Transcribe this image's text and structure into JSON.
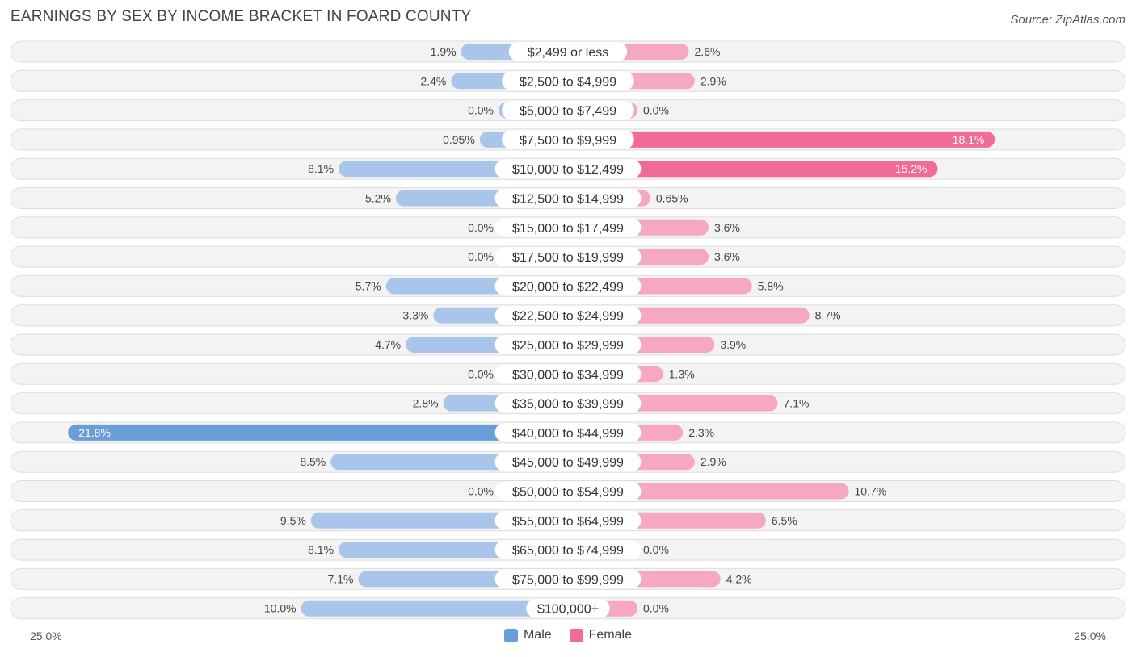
{
  "header": {
    "title": "EARNINGS BY SEX BY INCOME BRACKET IN FOARD COUNTY",
    "source": "Source: ZipAtlas.com"
  },
  "colors": {
    "male_light": "#a9c6ea",
    "male_strong": "#6a9ed9",
    "female_light": "#f6a7c2",
    "female_strong": "#f06b96"
  },
  "axis": {
    "left_label": "25.0%",
    "right_label": "25.0%"
  },
  "legend": {
    "male": "Male",
    "female": "Female"
  },
  "chart_data": {
    "type": "bar",
    "orientation": "horizontal-diverging",
    "title": "EARNINGS BY SEX BY INCOME BRACKET IN FOARD COUNTY",
    "xlim": [
      -25.0,
      25.0
    ],
    "categories": [
      "$2,499 or less",
      "$2,500 to $4,999",
      "$5,000 to $7,499",
      "$7,500 to $9,999",
      "$10,000 to $12,499",
      "$12,500 to $14,999",
      "$15,000 to $17,499",
      "$17,500 to $19,999",
      "$20,000 to $22,499",
      "$22,500 to $24,999",
      "$25,000 to $29,999",
      "$30,000 to $34,999",
      "$35,000 to $39,999",
      "$40,000 to $44,999",
      "$45,000 to $49,999",
      "$50,000 to $54,999",
      "$55,000 to $64,999",
      "$65,000 to $74,999",
      "$75,000 to $99,999",
      "$100,000+"
    ],
    "series": [
      {
        "name": "Male",
        "values": [
          1.9,
          2.4,
          0.0,
          0.95,
          8.1,
          5.2,
          0.0,
          0.0,
          5.7,
          3.3,
          4.7,
          0.0,
          2.8,
          21.8,
          8.5,
          0.0,
          9.5,
          8.1,
          7.1,
          10.0
        ],
        "labels": [
          "1.9%",
          "2.4%",
          "0.0%",
          "0.95%",
          "8.1%",
          "5.2%",
          "0.0%",
          "0.0%",
          "5.7%",
          "3.3%",
          "4.7%",
          "0.0%",
          "2.8%",
          "21.8%",
          "8.5%",
          "0.0%",
          "9.5%",
          "8.1%",
          "7.1%",
          "10.0%"
        ]
      },
      {
        "name": "Female",
        "values": [
          2.6,
          2.9,
          0.0,
          18.1,
          15.2,
          0.65,
          3.6,
          3.6,
          5.8,
          8.7,
          3.9,
          1.3,
          7.1,
          2.3,
          2.9,
          10.7,
          6.5,
          0.0,
          4.2,
          0.0
        ],
        "labels": [
          "2.6%",
          "2.9%",
          "0.0%",
          "18.1%",
          "15.2%",
          "0.65%",
          "3.6%",
          "3.6%",
          "5.8%",
          "8.7%",
          "3.9%",
          "1.3%",
          "7.1%",
          "2.3%",
          "2.9%",
          "10.7%",
          "6.5%",
          "0.0%",
          "4.2%",
          "0.0%"
        ]
      }
    ]
  }
}
